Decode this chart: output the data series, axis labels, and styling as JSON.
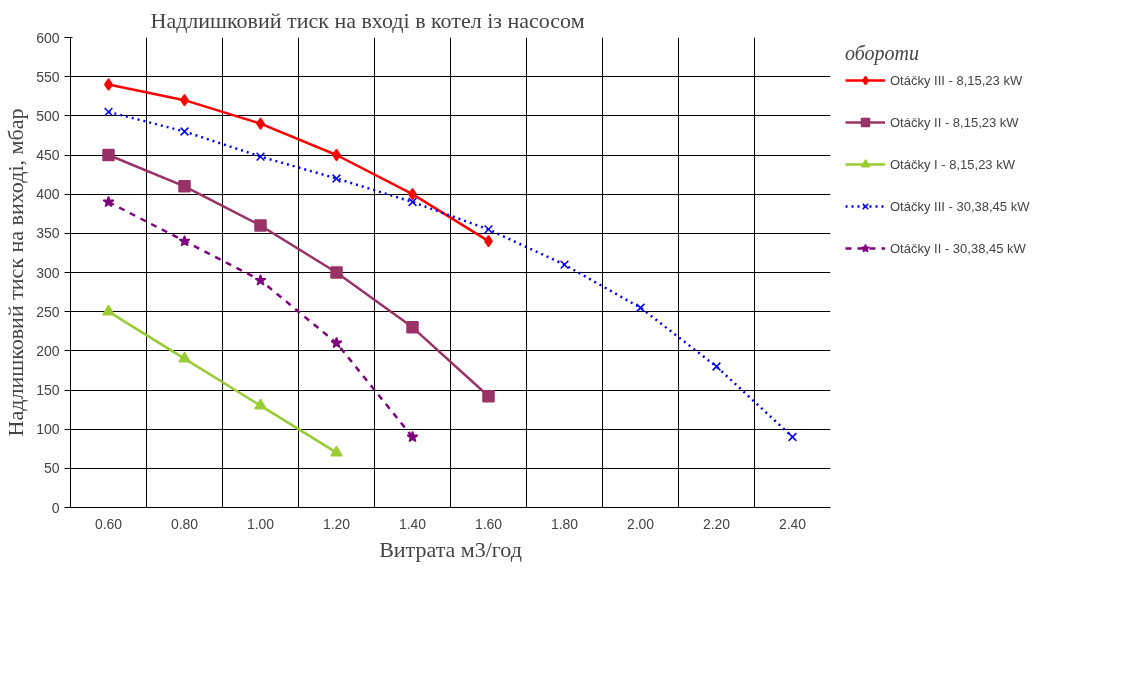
{
  "chart_data": {
    "type": "line",
    "title": "Надлишковий тиск на вході в котел із насосом",
    "xlabel": "Витрата м3/год",
    "ylabel": "Надлишковий тиск на виході, мбар",
    "legend_title": "обороти",
    "categories": [
      "0.60",
      "0.80",
      "1.00",
      "1.20",
      "1.40",
      "1.60",
      "1.80",
      "2.00",
      "2.20",
      "2.40"
    ],
    "ylim": [
      0,
      600
    ],
    "yticks": [
      0,
      50,
      100,
      150,
      200,
      250,
      300,
      350,
      400,
      450,
      500,
      550,
      600
    ],
    "grid": true,
    "legend": "right",
    "series": [
      {
        "name": "Otáčky III - 8,15,23 kW",
        "color": "#ff0000",
        "marker": "diamond",
        "line_style": "solid",
        "values": [
          540,
          520,
          490,
          450,
          400,
          340,
          null,
          null,
          null,
          null
        ]
      },
      {
        "name": "Otáčky II - 8,15,23 kW",
        "color": "#993366",
        "marker": "square",
        "line_style": "solid",
        "values": [
          450,
          410,
          360,
          300,
          230,
          142,
          null,
          null,
          null,
          null
        ]
      },
      {
        "name": "Otáčky I - 8,15,23 kW",
        "color": "#99cc33",
        "marker": "triangle",
        "line_style": "solid",
        "values": [
          250,
          190,
          130,
          70,
          null,
          null,
          null,
          null,
          null,
          null
        ]
      },
      {
        "name": "Otáčky III - 30,38,45 kW",
        "color": "#0000ff",
        "marker": "cross",
        "line_style": "dotted",
        "values": [
          505,
          480,
          448,
          420,
          390,
          355,
          310,
          255,
          180,
          90
        ]
      },
      {
        "name": "Otáčky II - 30,38,45 kW",
        "color": "#800080",
        "marker": "star",
        "line_style": "dashed",
        "values": [
          390,
          340,
          290,
          210,
          90,
          null,
          null,
          null,
          null,
          null
        ]
      }
    ]
  }
}
